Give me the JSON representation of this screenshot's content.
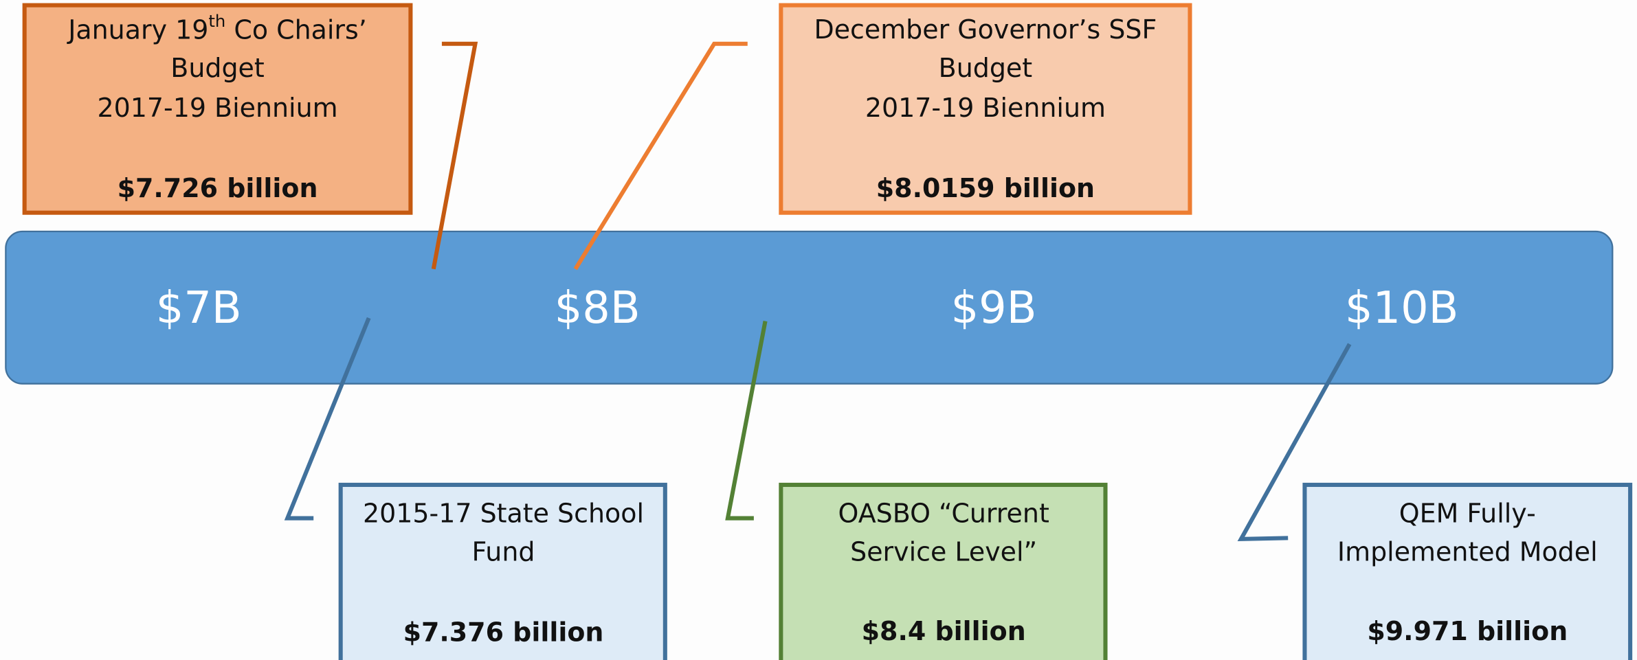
{
  "scale_labels": [
    "$7B",
    "$8B",
    "$9B",
    "$10B"
  ],
  "boxes": [
    {
      "lines": [
        [
          "January 19",
          "th",
          " Co Chairs’"
        ],
        "Budget",
        "2017-19 Biennium"
      ],
      "amount": "$7.726 billion"
    },
    {
      "lines": [
        "December Governor’s SSF",
        "Budget",
        "2017-19 Biennium"
      ],
      "amount": "$8.0159 billion"
    },
    {
      "lines": [
        "2015-17 State School",
        "Fund"
      ],
      "amount": "$7.376 billion"
    },
    {
      "lines": [
        "OASBO “Current",
        "Service Level”"
      ],
      "amount": "$8.4 billion"
    },
    {
      "lines": [
        "QEM Fully-",
        "Implemented Model"
      ],
      "amount": "$9.971 billion"
    }
  ]
}
